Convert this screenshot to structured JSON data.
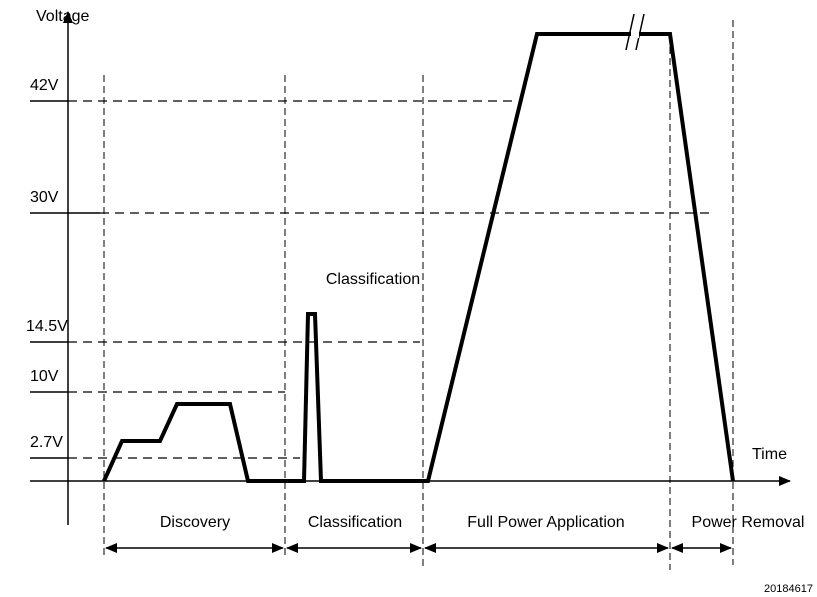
{
  "axes": {
    "y_label": "Voltage",
    "x_label": "Time"
  },
  "levels": [
    "42V",
    "30V",
    "14.5V",
    "10V",
    "2.7V"
  ],
  "annotation": "Classification",
  "phases": [
    "Discovery",
    "Classification",
    "Full Power Application",
    "Power Removal"
  ],
  "figure_id": "20184617"
}
